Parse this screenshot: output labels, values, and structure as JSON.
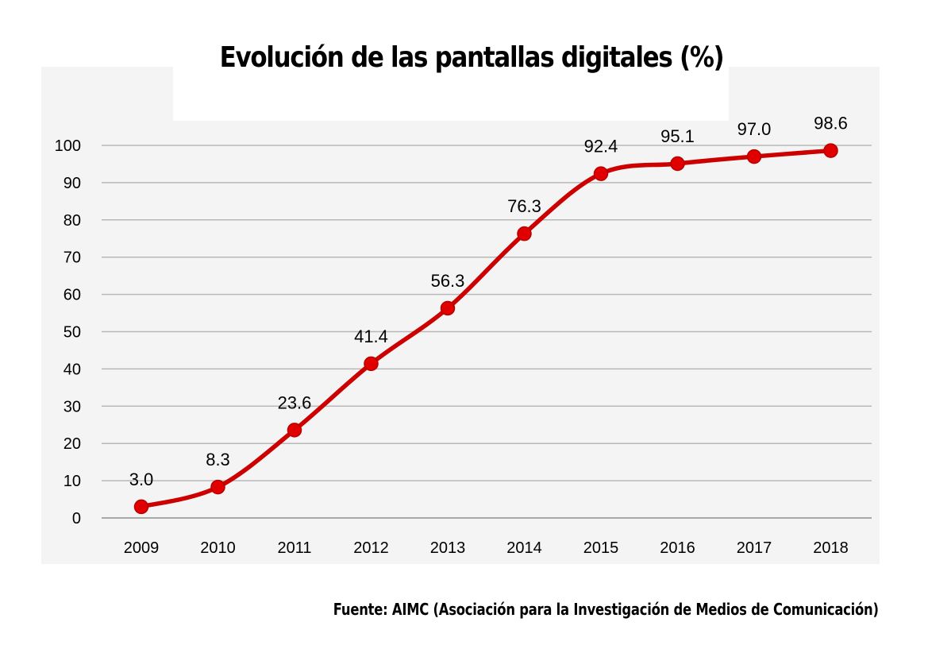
{
  "title": "Evolución de las pantallas digitales (%)",
  "source": {
    "label": "Fuente:",
    "text": "AIMC (Asociación para la Investigación de Medios de Comunicación)"
  },
  "colors": {
    "line": "#cc0000",
    "marker": "#e00000",
    "grid": "#b8b8b8",
    "panel": "#f4f4f4"
  },
  "chart_data": {
    "type": "line",
    "title": "Evolución de las pantallas digitales (%)",
    "xlabel": "",
    "ylabel": "",
    "categories": [
      "2009",
      "2010",
      "2011",
      "2012",
      "2013",
      "2014",
      "2015",
      "2016",
      "2017",
      "2018"
    ],
    "values": [
      3.0,
      8.3,
      23.6,
      41.4,
      56.3,
      76.3,
      92.4,
      95.1,
      97.0,
      98.6
    ],
    "value_labels": [
      "3.0",
      "8.3",
      "23.6",
      "41.4",
      "56.3",
      "76.3",
      "92.4",
      "95.1",
      "97.0",
      "98.6"
    ],
    "y_ticks": [
      0,
      10,
      20,
      30,
      40,
      50,
      60,
      70,
      80,
      90,
      100
    ],
    "ylim": [
      0,
      100
    ],
    "grid": true,
    "smooth": true,
    "markers": true,
    "legend": "none"
  }
}
